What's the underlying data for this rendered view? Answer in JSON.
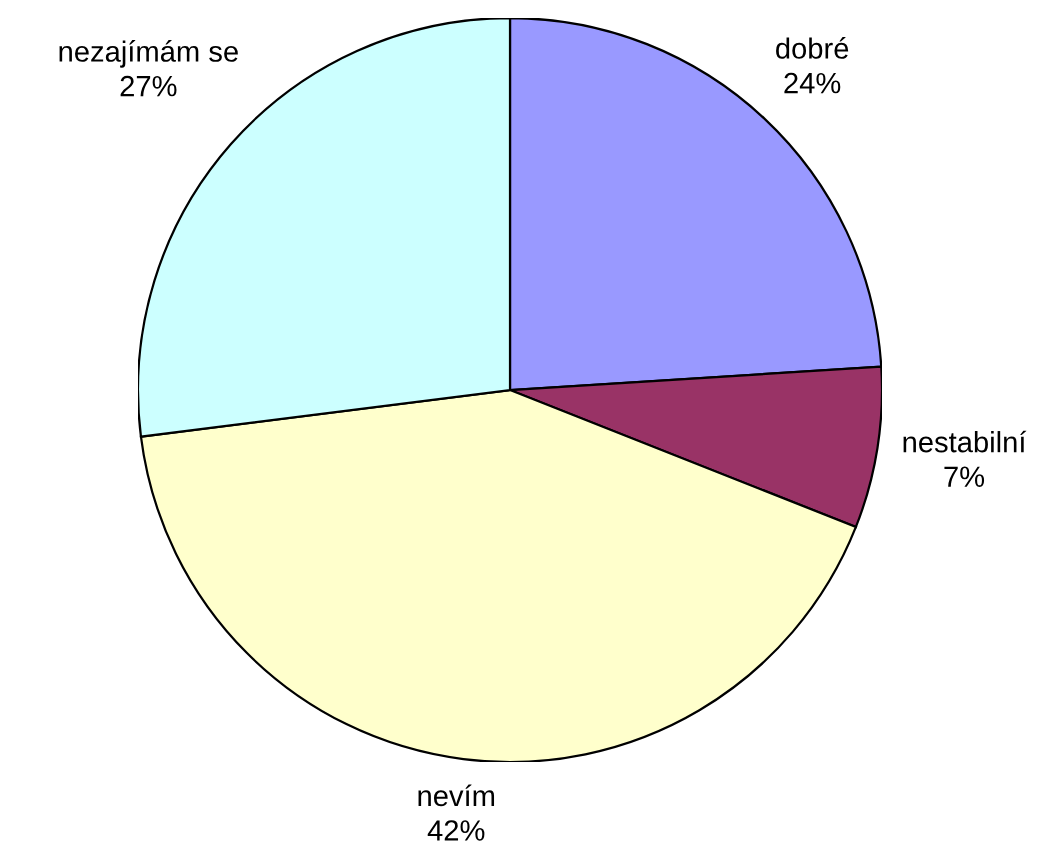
{
  "chart_data": {
    "type": "pie",
    "categories": [
      "dobré",
      "nestabilní",
      "nevím",
      "nezajímám se"
    ],
    "values": [
      24,
      7,
      42,
      27
    ],
    "colors": [
      "#9999ff",
      "#993366",
      "#ffffcc",
      "#ccffff"
    ],
    "value_labels": [
      "24%",
      "7%",
      "42%",
      "27%"
    ]
  }
}
